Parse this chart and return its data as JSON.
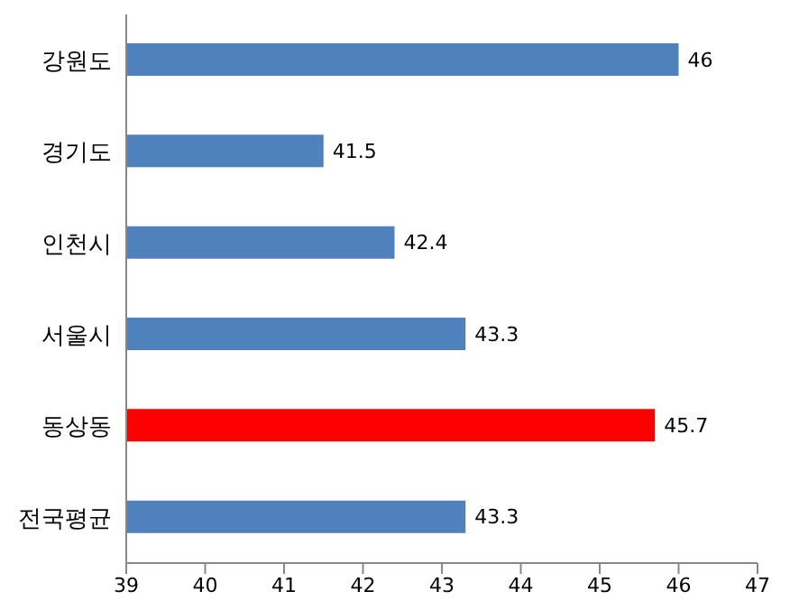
{
  "chart_data": {
    "type": "bar",
    "orientation": "horizontal",
    "categories": [
      "강원도",
      "경기도",
      "인천시",
      "서울시",
      "동상동",
      "전국평균"
    ],
    "values": [
      46,
      41.5,
      42.4,
      43.3,
      45.7,
      43.3
    ],
    "colors": [
      "#4f81bd",
      "#4f81bd",
      "#4f81bd",
      "#4f81bd",
      "#ff0000",
      "#4f81bd"
    ],
    "xlim": [
      39,
      47
    ],
    "xticks": [
      39,
      40,
      41,
      42,
      43,
      44,
      45,
      46,
      47
    ],
    "data_labels": true,
    "grid": false
  }
}
